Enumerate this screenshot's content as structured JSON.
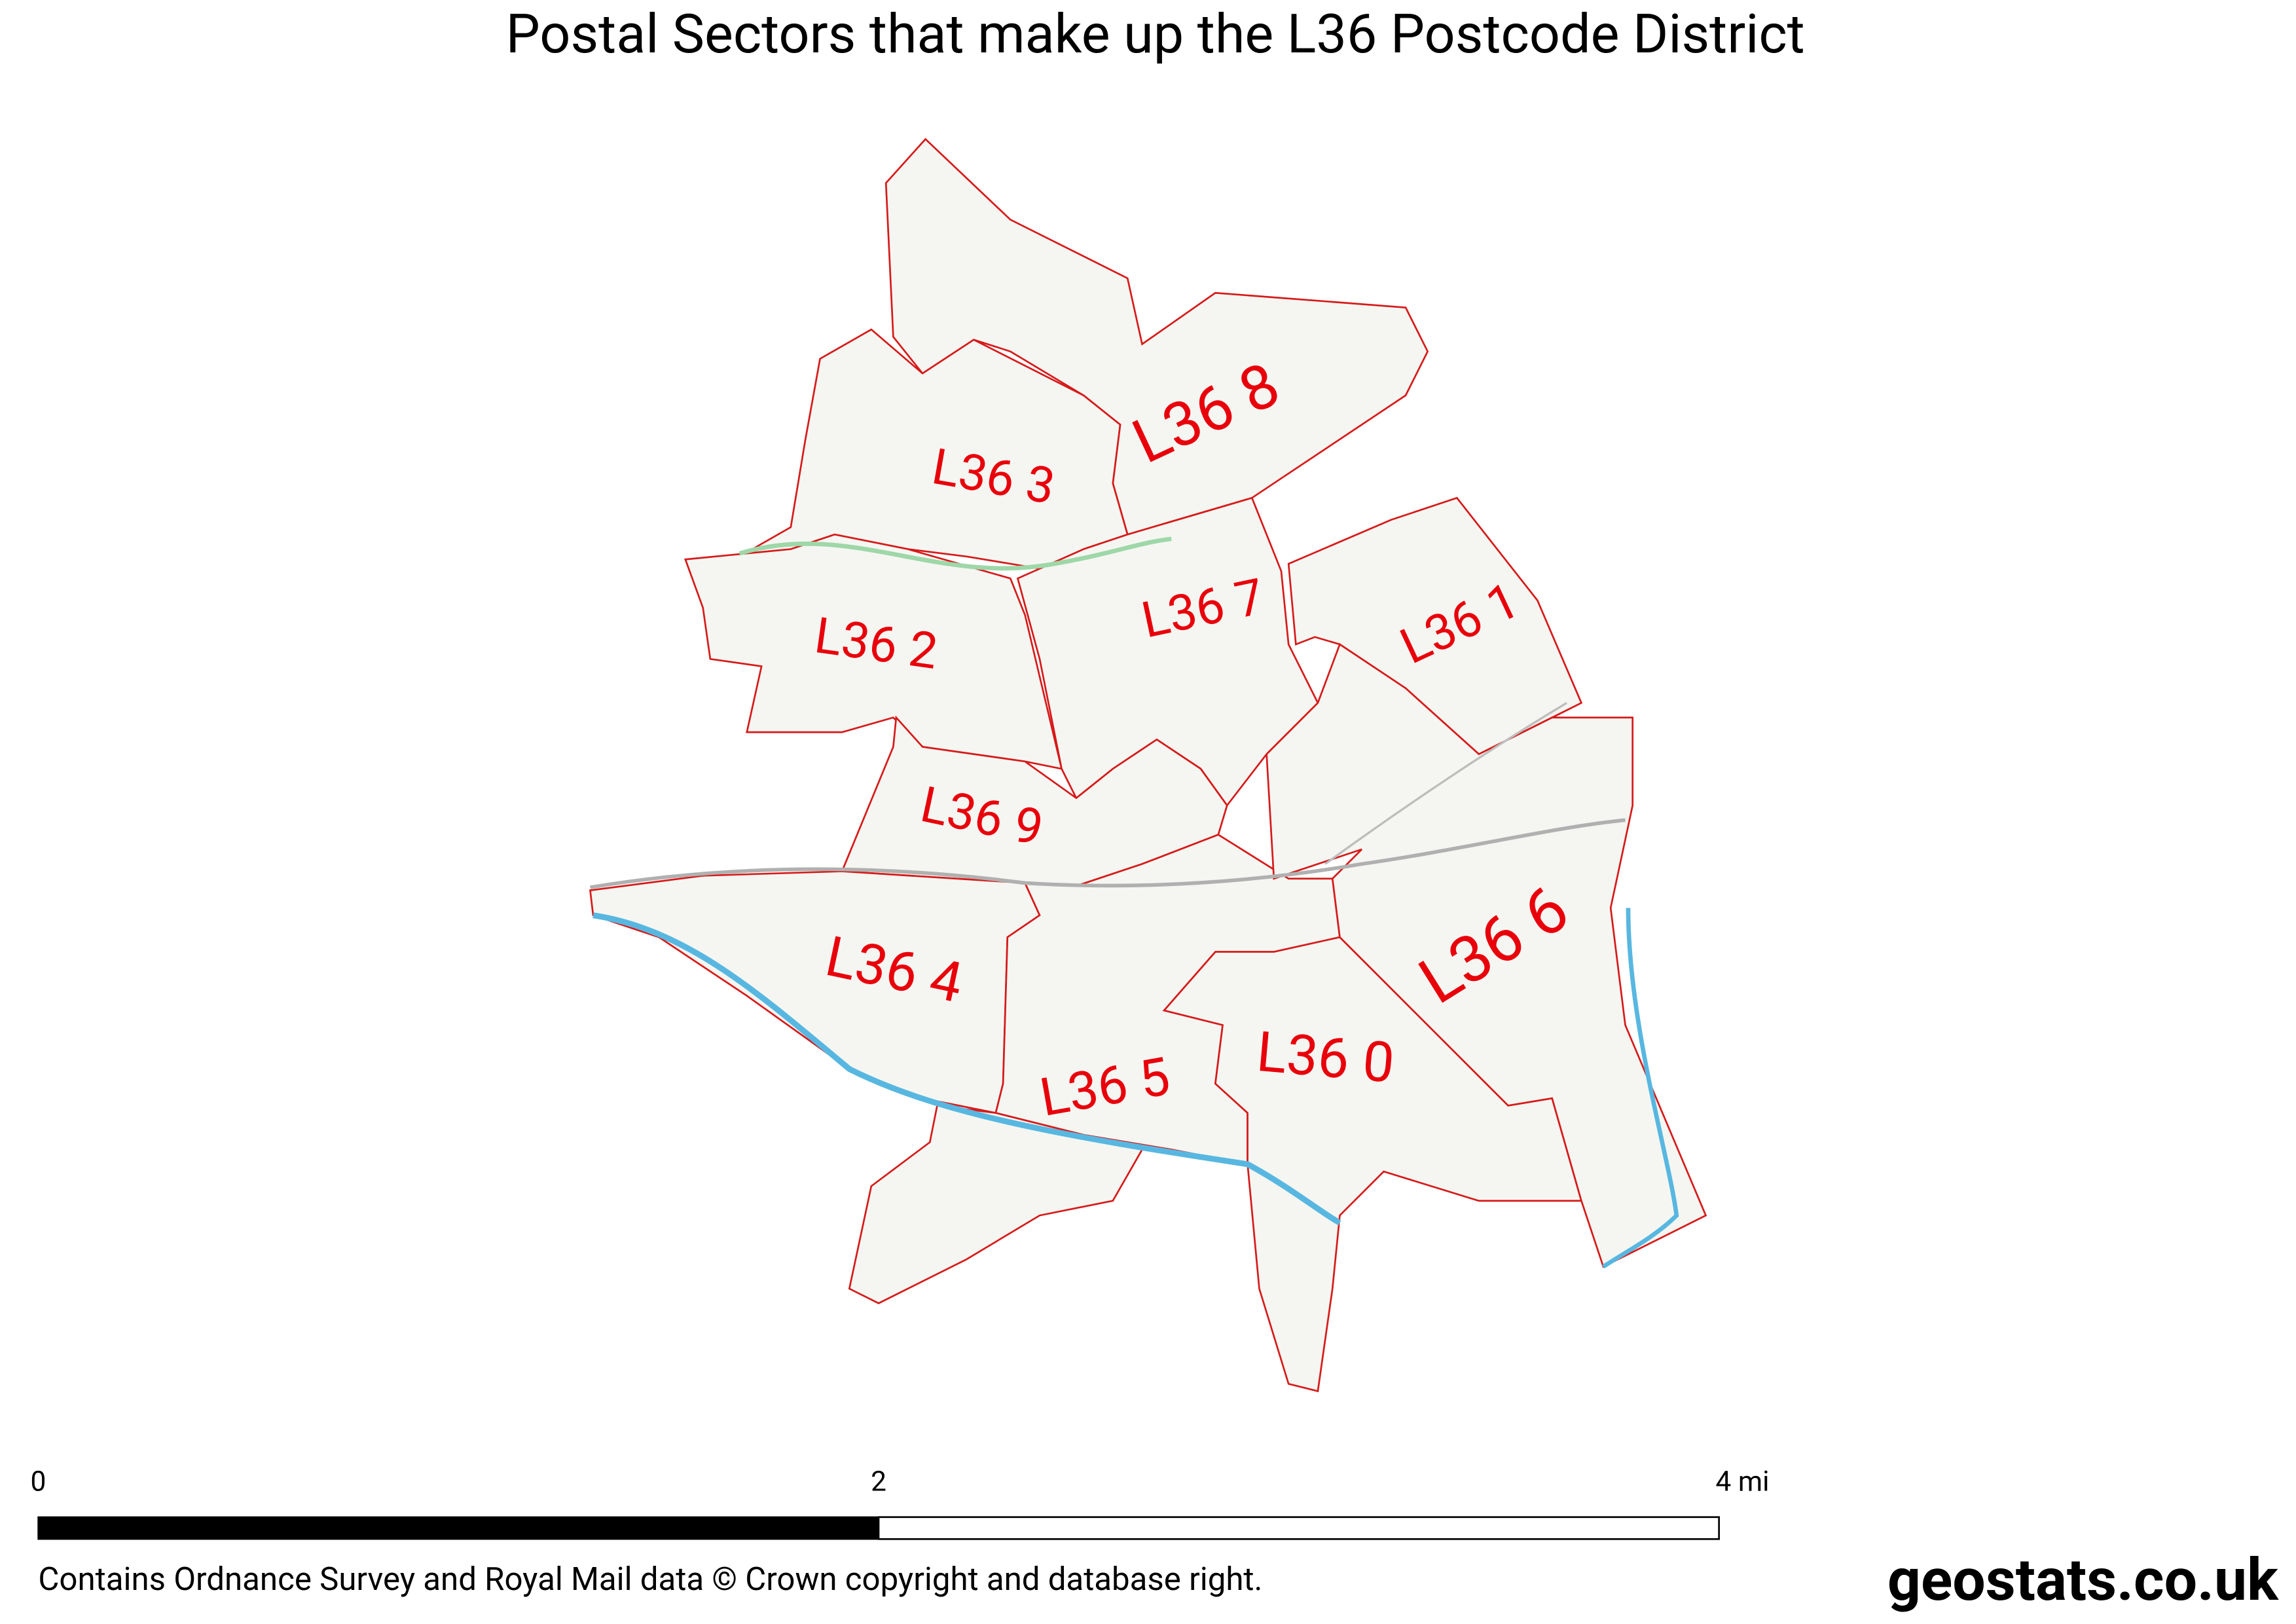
{
  "title": "Postal Sectors that make up the L36 Postcode District",
  "sectors": [
    {
      "label": "L36 8"
    },
    {
      "label": "L36 3"
    },
    {
      "label": "L36 2"
    },
    {
      "label": "L36 7"
    },
    {
      "label": "L36 1"
    },
    {
      "label": "L36 9"
    },
    {
      "label": "L36 4"
    },
    {
      "label": "L36 5"
    },
    {
      "label": "L36 0"
    },
    {
      "label": "L36 6"
    }
  ],
  "scale_bar": {
    "labels": [
      "0",
      "2",
      "4 mi"
    ]
  },
  "attribution": "Contains Ordnance Survey and Royal Mail data © Crown copyright and database right.",
  "brand": "geostats.co.uk"
}
